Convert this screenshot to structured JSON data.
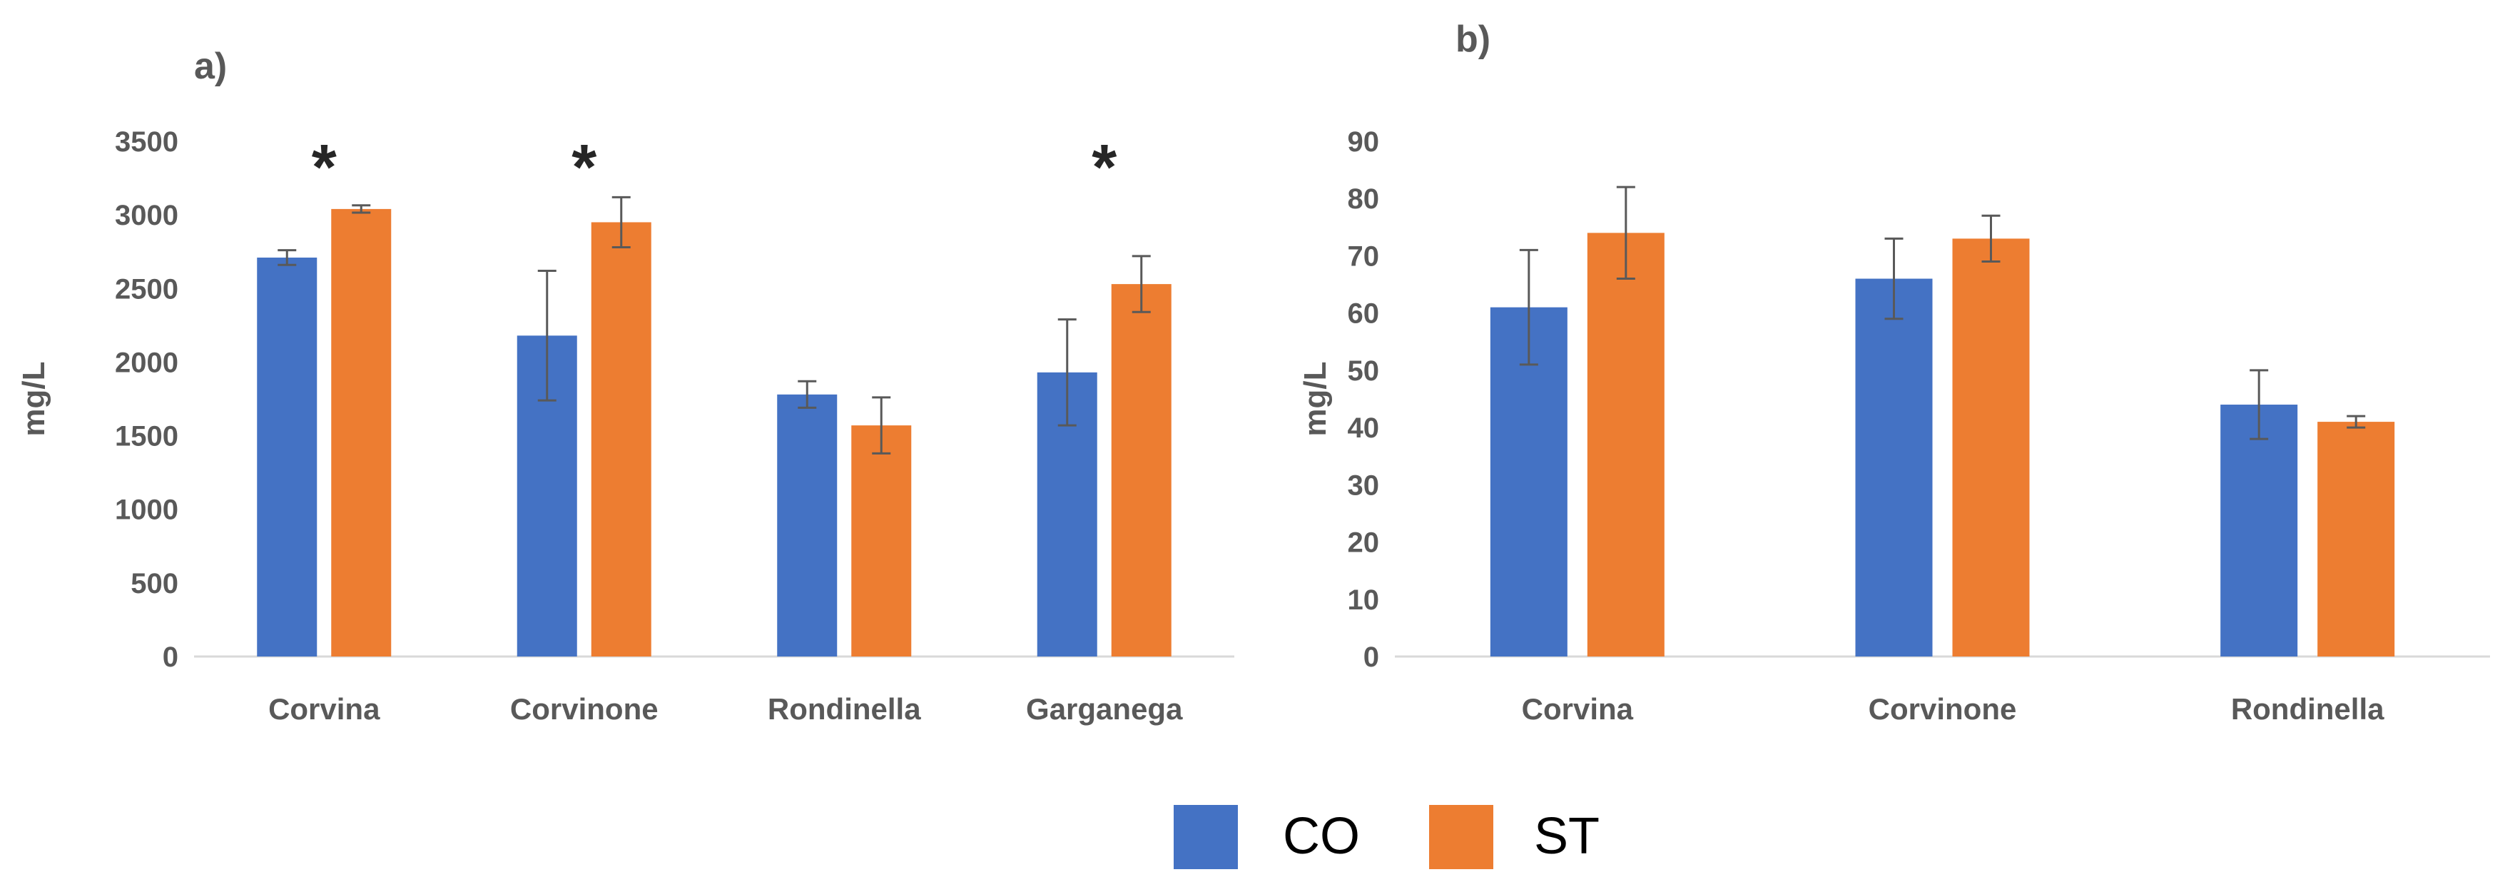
{
  "chart_data": [
    {
      "type": "bar",
      "panel_label": "a)",
      "ylabel": "mg/L",
      "xlabel": "",
      "ylim": [
        0,
        3500
      ],
      "ytick_step": 500,
      "categories": [
        "Corvina",
        "Corvinone",
        "Rondinella",
        "Garganega"
      ],
      "series": [
        {
          "name": "CO",
          "color": "#4472C4",
          "values": [
            2710,
            2180,
            1780,
            1930
          ],
          "errors": [
            50,
            440,
            90,
            360
          ]
        },
        {
          "name": "ST",
          "color": "#ED7D31",
          "values": [
            3040,
            2950,
            1570,
            2530
          ],
          "errors": [
            25,
            170,
            190,
            190
          ]
        }
      ],
      "annotations": [
        "*",
        "*",
        "",
        "*"
      ]
    },
    {
      "type": "bar",
      "panel_label": "b)",
      "ylabel": "mg/L",
      "xlabel": "",
      "ylim": [
        0,
        90
      ],
      "ytick_step": 10,
      "categories": [
        "Corvina",
        "Corvinone",
        "Rondinella"
      ],
      "series": [
        {
          "name": "CO",
          "color": "#4472C4",
          "values": [
            61,
            66,
            44
          ],
          "errors": [
            10,
            7,
            6
          ]
        },
        {
          "name": "ST",
          "color": "#ED7D31",
          "values": [
            74,
            73,
            41
          ],
          "errors": [
            8,
            4,
            1
          ]
        }
      ],
      "annotations": [
        "",
        "",
        ""
      ]
    }
  ],
  "legend": {
    "placement": "bottom-center",
    "items": [
      {
        "label": "CO",
        "color": "#4472C4"
      },
      {
        "label": "ST",
        "color": "#ED7D31"
      }
    ]
  }
}
